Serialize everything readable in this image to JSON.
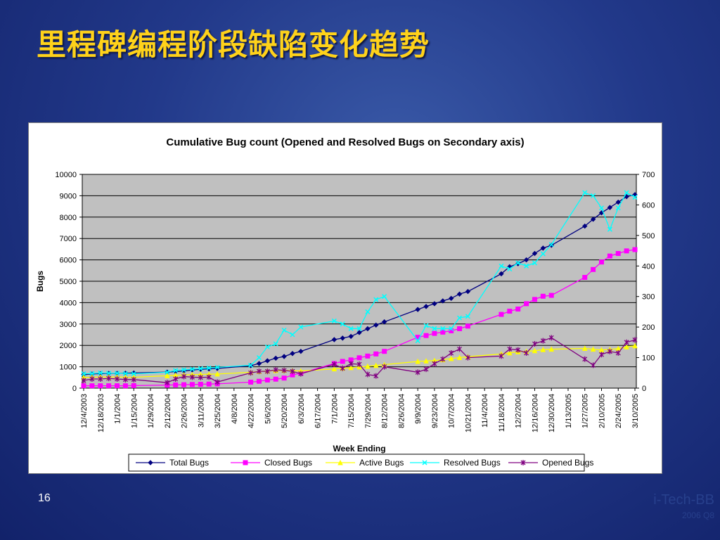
{
  "slide": {
    "title": "里程碑编程阶段缺陷变化趋势",
    "page_number": "16"
  },
  "colors": {
    "background": "#22398a",
    "title": "#ffd21a",
    "plot_area": "#c0c0c0",
    "total_bugs": "#000080",
    "closed_bugs": "#ff00ff",
    "active_bugs": "#ffff00",
    "resolved_bugs": "#00ffff",
    "opened_bugs": "#800080"
  },
  "chart_data": {
    "type": "line",
    "title": "Cumulative Bug count (Opened and Resolved Bugs on Secondary axis)",
    "xlabel": "Week Ending",
    "ylabel": "Bugs",
    "y2label": "",
    "ylim": [
      0,
      10000
    ],
    "y2lim": [
      0,
      700
    ],
    "yticks": [
      0,
      1000,
      2000,
      3000,
      4000,
      5000,
      6000,
      7000,
      8000,
      9000,
      10000
    ],
    "y2ticks": [
      0,
      100,
      200,
      300,
      400,
      500,
      600,
      700
    ],
    "x_tick_labels": [
      "12/4/2003",
      "12/18/2003",
      "1/1/2004",
      "1/15/2004",
      "1/29/2004",
      "2/12/2004",
      "2/26/2004",
      "3/11/2004",
      "3/25/2004",
      "4/8/2004",
      "4/22/2004",
      "5/6/2004",
      "5/20/2004",
      "6/3/2004",
      "6/17/2004",
      "7/1/2004",
      "7/15/2004",
      "7/29/2004",
      "8/12/2004",
      "8/26/2004",
      "9/9/2004",
      "9/23/2004",
      "10/7/2004",
      "10/21/2004",
      "11/4/2004",
      "11/18/2004",
      "12/2/2004",
      "12/16/2004",
      "12/30/2004",
      "1/13/2005",
      "1/27/2005",
      "2/10/2005",
      "2/24/2005",
      "3/10/2005"
    ],
    "x": [
      "12/4/2003",
      "12/11/2003",
      "12/18/2003",
      "12/25/2003",
      "1/1/2004",
      "1/8/2004",
      "1/15/2004",
      "2/12/2004",
      "2/19/2004",
      "2/26/2004",
      "3/4/2004",
      "3/11/2004",
      "3/18/2004",
      "3/25/2004",
      "4/22/2004",
      "4/29/2004",
      "5/6/2004",
      "5/13/2004",
      "5/20/2004",
      "5/27/2004",
      "6/3/2004",
      "7/1/2004",
      "7/8/2004",
      "7/15/2004",
      "7/22/2004",
      "7/29/2004",
      "8/5/2004",
      "8/12/2004",
      "9/9/2004",
      "9/16/2004",
      "9/23/2004",
      "9/30/2004",
      "10/7/2004",
      "10/14/2004",
      "10/21/2004",
      "11/18/2004",
      "11/25/2004",
      "12/2/2004",
      "12/9/2004",
      "12/16/2004",
      "12/23/2004",
      "12/30/2004",
      "1/27/2005",
      "2/3/2005",
      "2/10/2005",
      "2/17/2005",
      "2/24/2005",
      "3/3/2005",
      "3/10/2005"
    ],
    "series": [
      {
        "name": "Total Bugs",
        "axis": "primary",
        "color": "#000080",
        "marker": "diamond",
        "values": [
          630,
          660,
          680,
          690,
          690,
          700,
          710,
          750,
          770,
          800,
          850,
          880,
          900,
          920,
          1050,
          1150,
          1280,
          1400,
          1480,
          1620,
          1720,
          2270,
          2340,
          2420,
          2600,
          2780,
          2950,
          3100,
          3680,
          3820,
          3950,
          4080,
          4200,
          4400,
          4520,
          5350,
          5680,
          5820,
          6000,
          6300,
          6550,
          6680,
          7580,
          7900,
          8200,
          8450,
          8700,
          8960,
          9050
        ]
      },
      {
        "name": "Closed Bugs",
        "axis": "primary",
        "color": "#ff00ff",
        "marker": "square",
        "values": [
          110,
          110,
          110,
          110,
          110,
          110,
          120,
          140,
          150,
          160,
          170,
          180,
          190,
          200,
          280,
          320,
          380,
          420,
          470,
          620,
          700,
          1150,
          1250,
          1320,
          1420,
          1500,
          1600,
          1720,
          2380,
          2460,
          2560,
          2620,
          2680,
          2780,
          2900,
          3450,
          3600,
          3700,
          3950,
          4150,
          4300,
          4340,
          5180,
          5550,
          5900,
          6180,
          6300,
          6420,
          6480
        ]
      },
      {
        "name": "Active Bugs",
        "axis": "primary",
        "color": "#ffff00",
        "marker": "triangle",
        "values": [
          500,
          510,
          520,
          520,
          520,
          510,
          510,
          580,
          600,
          620,
          630,
          640,
          650,
          660,
          740,
          780,
          800,
          820,
          830,
          820,
          800,
          900,
          930,
          960,
          990,
          1020,
          1060,
          1100,
          1250,
          1270,
          1290,
          1330,
          1380,
          1430,
          1470,
          1600,
          1650,
          1700,
          1720,
          1750,
          1800,
          1820,
          1860,
          1820,
          1790,
          1810,
          1850,
          1930,
          1980
        ]
      },
      {
        "name": "Resolved Bugs",
        "axis": "secondary",
        "color": "#00ffff",
        "marker": "x",
        "values": [
          47,
          48,
          50,
          49,
          49,
          48,
          47,
          52,
          58,
          60,
          62,
          64,
          66,
          68,
          75,
          100,
          135,
          145,
          190,
          175,
          200,
          220,
          210,
          195,
          195,
          250,
          290,
          300,
          155,
          205,
          195,
          195,
          195,
          230,
          235,
          400,
          390,
          410,
          400,
          410,
          440,
          470,
          640,
          630,
          590,
          520,
          590,
          640,
          625
        ]
      },
      {
        "name": "Opened Bugs",
        "axis": "secondary",
        "color": "#800080",
        "marker": "asterisk",
        "values": [
          25,
          30,
          30,
          32,
          30,
          28,
          28,
          18,
          30,
          38,
          36,
          35,
          36,
          20,
          50,
          55,
          55,
          60,
          58,
          55,
          47,
          78,
          65,
          80,
          78,
          45,
          40,
          70,
          52,
          62,
          80,
          95,
          115,
          128,
          100,
          105,
          128,
          125,
          115,
          145,
          155,
          165,
          95,
          75,
          110,
          120,
          115,
          150,
          158
        ]
      }
    ],
    "legend": "bottom",
    "grid": true
  },
  "watermark": {
    "line1": "i-Tech-BB",
    "line2": "2006 Q8"
  }
}
